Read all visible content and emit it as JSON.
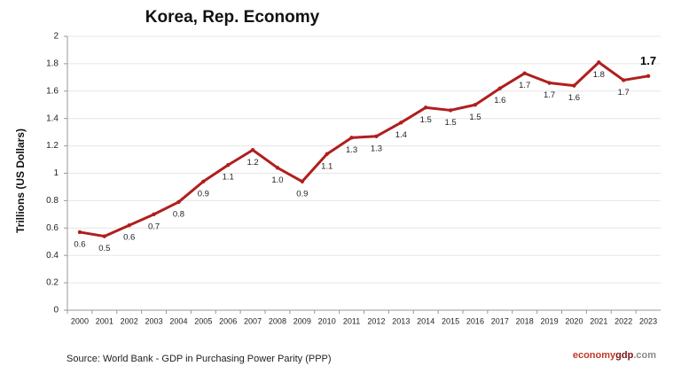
{
  "chart_data": {
    "type": "line",
    "title": "Korea, Rep. Economy",
    "y_label": "Trillions (US Dollars)",
    "source": "Source:  World Bank -  GDP  in Purchasing Power Parity (PPP)",
    "brand": [
      "economy",
      "gdp",
      ".com"
    ],
    "categories": [
      "2000",
      "2001",
      "2002",
      "2003",
      "2004",
      "2005",
      "2006",
      "2007",
      "2008",
      "2009",
      "2010",
      "2011",
      "2012",
      "2013",
      "2014",
      "2015",
      "2016",
      "2017",
      "2018",
      "2019",
      "2020",
      "2021",
      "2022",
      "2023"
    ],
    "series": [
      {
        "color": "#b01e1e",
        "values": [
          0.57,
          0.54,
          0.62,
          0.7,
          0.79,
          0.94,
          1.06,
          1.17,
          1.04,
          0.94,
          1.14,
          1.26,
          1.27,
          1.37,
          1.48,
          1.46,
          1.5,
          1.62,
          1.73,
          1.66,
          1.64,
          1.81,
          1.68,
          1.71
        ],
        "value_labels": [
          "0.6",
          "0.5",
          "0.6",
          "0.7",
          "0.8",
          "0.9",
          "1.1",
          "1.2",
          "1.0",
          "0.9",
          "1.1",
          "1.3",
          "1.3",
          "1.4",
          "1.5",
          "1.5",
          "1.5",
          "1.6",
          "1.7",
          "1.7",
          "1.6",
          "1.8",
          "1.7",
          "1.7"
        ]
      }
    ],
    "ylim": [
      0,
      2
    ],
    "yticks": [
      0,
      0.2,
      0.4,
      0.6,
      0.8,
      1,
      1.2,
      1.4,
      1.6,
      1.8,
      2
    ],
    "grid": true
  }
}
